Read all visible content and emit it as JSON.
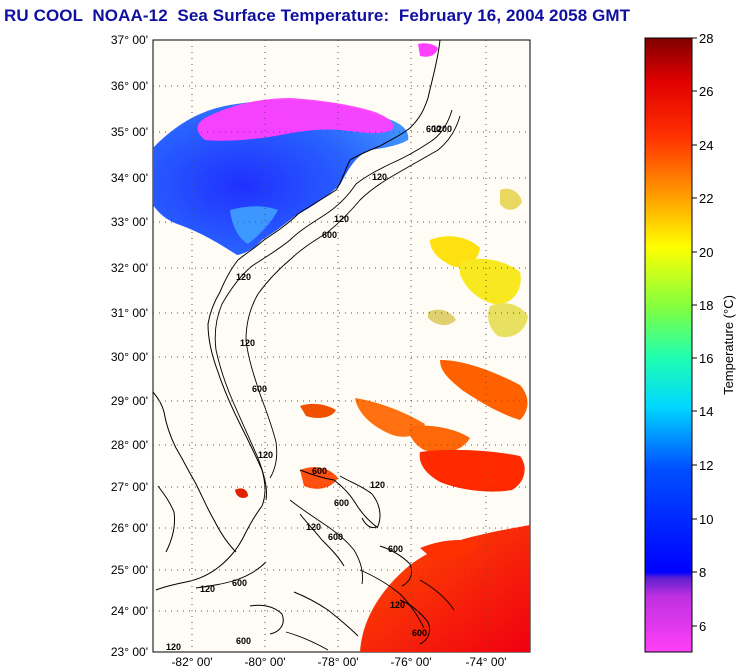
{
  "title": "RU COOL  NOAA-12  Sea Surface Temperature:  February 16, 2004 2058 GMT",
  "map": {
    "lat_labels": [
      "37° 00'",
      "36° 00'",
      "35° 00'",
      "34° 00'",
      "33° 00'",
      "32° 00'",
      "31° 00'",
      "30° 00'",
      "29° 00'",
      "28° 00'",
      "27° 00'",
      "26° 00'",
      "25° 00'",
      "24° 00'",
      "23° 00'"
    ],
    "lon_labels": [
      "-82° 00'",
      "-80° 00'",
      "-78° 00'",
      "-76° 00'",
      "-74° 00'"
    ],
    "contour_labels": [
      "120",
      "600",
      "1200",
      "120",
      "120",
      "600",
      "120",
      "120",
      "600",
      "120",
      "600",
      "600",
      "600",
      "120",
      "600",
      "120",
      "600",
      "120",
      "600",
      "120",
      "600"
    ]
  },
  "colorbar": {
    "title": "Temperature (°C)",
    "ticks": [
      "28",
      "26",
      "24",
      "22",
      "20",
      "18",
      "16",
      "14",
      "12",
      "10",
      "8",
      "6"
    ],
    "min": 5,
    "max": 28,
    "colors": {
      "top": "#800000",
      "red": "#ff0000",
      "orange": "#ff8000",
      "yellow": "#ffff00",
      "green": "#40ff40",
      "cyan": "#00ffff",
      "blue": "#0000ff",
      "violet": "#8020d0",
      "magenta": "#ff30ff"
    }
  },
  "colors": {
    "title": "#1010a0",
    "land": "#fffcf5",
    "sea_cold": "#2040ff",
    "sea_magenta": "#ff40ff",
    "sea_warm": "#ff2000"
  }
}
